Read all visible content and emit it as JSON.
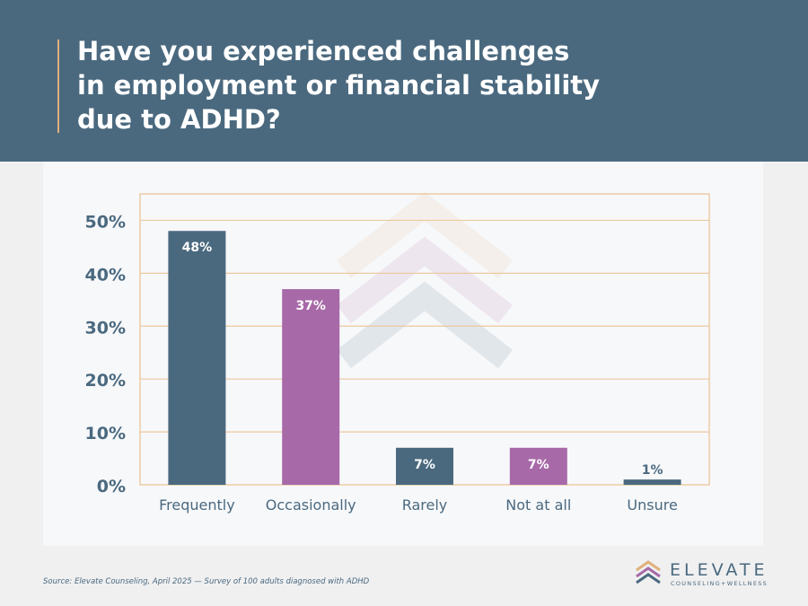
{
  "header": {
    "title_lines": [
      "Have you experienced challenges",
      "in employment or financial stability",
      "due to ADHD?"
    ]
  },
  "chart_data": {
    "type": "bar",
    "title": "Have you experienced challenges in employment or financial stability due to ADHD?",
    "categories": [
      "Frequently",
      "Occasionally",
      "Rarely",
      "Not at all",
      "Unsure"
    ],
    "values": [
      48,
      37,
      7,
      7,
      1
    ],
    "data_labels": [
      "48%",
      "37%",
      "7%",
      "7%",
      "1%"
    ],
    "ylim": [
      0,
      55
    ],
    "yticks": [
      0,
      10,
      20,
      30,
      40,
      50
    ],
    "ytick_labels": [
      "0%",
      "10%",
      "20%",
      "30%",
      "40%",
      "50%"
    ],
    "xlabel": "",
    "ylabel": "",
    "grid": true,
    "bar_colors": [
      "#4a697f",
      "#a769a8",
      "#4a697f",
      "#a769a8",
      "#4a697f"
    ],
    "grid_color": "#ecc99e"
  },
  "footer": {
    "source": "Source: Elevate Counseling, April 2025 — Survey of 100 adults diagnosed with ADHD"
  },
  "logo": {
    "wordmark": "ELEVATE",
    "tagline": "COUNSELING+WELLNESS"
  },
  "colors": {
    "header_bg": "#4a697f",
    "accent_orange": "#e0b07a",
    "accent_purple": "#a769a8",
    "text_dark": "#4a697f"
  }
}
